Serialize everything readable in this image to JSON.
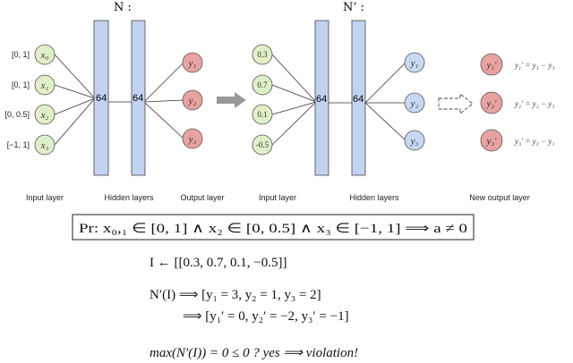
{
  "left_network": {
    "title": "N :",
    "input_ranges": [
      "[0, 1]",
      "[0, 1]",
      "[0, 0.5]",
      "[−1, 1]"
    ],
    "inputs": [
      "x₀",
      "x₁",
      "x₂",
      "x₃"
    ],
    "hidden_sizes": [
      "64",
      "64"
    ],
    "outputs": [
      "y₁",
      "y₂",
      "y₃"
    ],
    "labels": {
      "input": "Input layer",
      "hidden": "Hidden layers",
      "output": "Output layer"
    }
  },
  "right_network": {
    "title": "N’ :",
    "inputs": [
      "0.3",
      "0.7",
      "0.1",
      "-0.5"
    ],
    "hidden_sizes": [
      "64",
      "64"
    ],
    "outputs": [
      "y₁",
      "y₂",
      "y₃"
    ],
    "new_outputs": [
      "y₁′",
      "y₂′",
      "y₃′"
    ],
    "equations": [
      "y₁′ = y₁ − y₁",
      "y₂′ = y₂ − y₁",
      "y₃′ = y₃ − y₁"
    ],
    "labels": {
      "input": "Input layer",
      "hidden": "Hidden layers",
      "output": "New output layer"
    }
  },
  "colors": {
    "input_node": "#dff0c8",
    "hidden_bar": "#c2d3f2",
    "output_node": "#e8a3a0",
    "blue_output": "#c7d8f3",
    "arrow": "#999999"
  },
  "formulas": {
    "property": "Pr: x₀,₁ ∈ [0, 1] ∧ x₂ ∈ [0, 0.5] ∧ x₃ ∈ [−1, 1] ⟹ a ≠ 0",
    "input_assign": "I ← [[0.3, 0.7, 0.1, −0.5]]",
    "network_output": "N′(I) ⟹ [y₁ = 3, y₂ = 1, y₃ = 2]",
    "transformed_output": "⟹ [y₁′ = 0, y₂′ = −2, y₃′ = −1]",
    "check": "max(N′(I)) = 0 ≤ 0 ? yes ⟹ violation!"
  }
}
